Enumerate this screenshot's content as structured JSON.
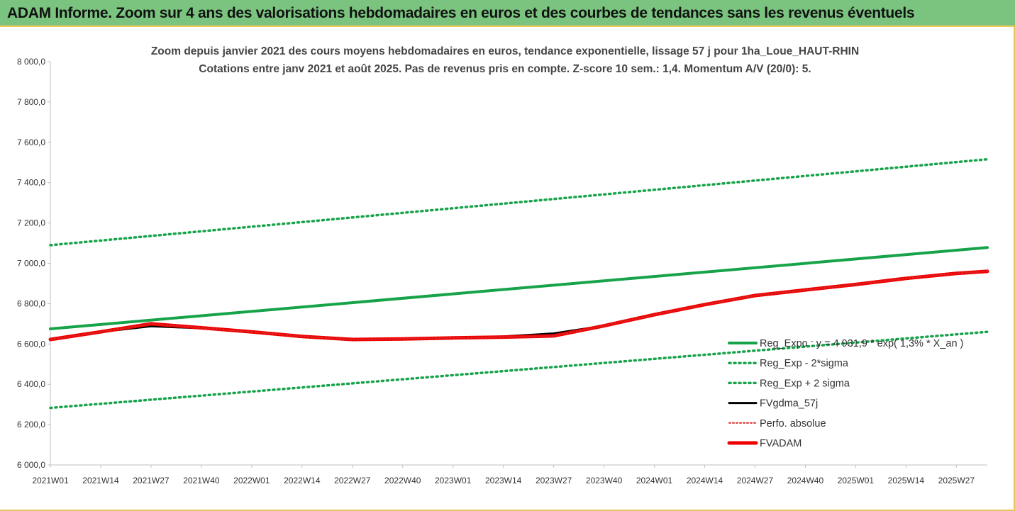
{
  "header": {
    "title": "ADAM Informe. Zoom sur 4 ans des valorisations hebdomadaires en euros et des courbes de tendances sans les revenus éventuels"
  },
  "chart_data": {
    "type": "line",
    "title_lines": [
      "Zoom depuis janvier 2021 des cours moyens hebdomadaires en euros, tendance exponentielle, lissage 57 j pour 1ha_Loue_HAUT-RHIN",
      "Cotations entre janv 2021 et août 2025.  Pas de revenus pris en compte. Z-score 10 sem.: 1,4. Momentum A/V (20/0): 5."
    ],
    "x_tick_labels": [
      "2021W01",
      "2021W14",
      "2021W27",
      "2021W40",
      "2022W01",
      "2022W14",
      "2022W27",
      "2022W40",
      "2023W01",
      "2023W14",
      "2023W27",
      "2023W40",
      "2024W01",
      "2024W14",
      "2024W27",
      "2024W40",
      "2025W01",
      "2025W14",
      "2025W27"
    ],
    "y_tick_labels": [
      "8 000,0",
      "7 800,0",
      "7 600,0",
      "7 400,0",
      "7 200,0",
      "7 000,0",
      "6 800,0",
      "6 600,0",
      "6 400,0",
      "6 200,0",
      "6 000,0"
    ],
    "ylim": [
      6000,
      8000
    ],
    "x_range_weeks": [
      0,
      242
    ],
    "grid": false,
    "legend_position": "right",
    "series": [
      {
        "name": "Reg_Expo : y = 4 931,9 * exp( 1,3% *  X_an )",
        "style": "solid",
        "color": "#16a34a",
        "x": [
          0,
          242
        ],
        "y": [
          6675,
          7078
        ]
      },
      {
        "name": "Reg_Exp - 2*sigma",
        "style": "dotted",
        "color": "#16a34a",
        "x": [
          0,
          242
        ],
        "y": [
          6283,
          6660
        ]
      },
      {
        "name": "Reg_Exp + 2 sigma",
        "style": "dotted",
        "color": "#16a34a",
        "x": [
          0,
          242
        ],
        "y": [
          7090,
          7516
        ]
      },
      {
        "name": "FVgdma_57j",
        "style": "solid",
        "color": "#000000",
        "x": [
          0,
          13,
          26,
          39,
          52,
          65,
          78,
          91,
          104,
          117,
          130,
          143,
          156,
          169,
          182,
          195,
          208,
          221,
          234,
          242
        ],
        "y": [
          6622,
          6660,
          6688,
          6678,
          6658,
          6637,
          6623,
          6623,
          6630,
          6637,
          6652,
          6690,
          6745,
          6795,
          6840,
          6868,
          6895,
          6925,
          6950,
          6960
        ]
      },
      {
        "name": "Perfo. absolue",
        "style": "dotted",
        "color": "#dc2626",
        "x": [
          0,
          13,
          26,
          39,
          52,
          65,
          78,
          91,
          104,
          117,
          130,
          143,
          156,
          169,
          182,
          195,
          208,
          221,
          234,
          242
        ],
        "y": [
          6622,
          6660,
          6700,
          6680,
          6660,
          6637,
          6622,
          6625,
          6630,
          6634,
          6640,
          6690,
          6745,
          6795,
          6840,
          6868,
          6895,
          6925,
          6950,
          6960
        ]
      },
      {
        "name": "FVADAM",
        "style": "solid-thick",
        "color": "#ef0000",
        "x": [
          0,
          13,
          26,
          39,
          52,
          65,
          78,
          91,
          104,
          117,
          130,
          143,
          156,
          169,
          182,
          195,
          208,
          221,
          234,
          242
        ],
        "y": [
          6622,
          6660,
          6700,
          6680,
          6660,
          6637,
          6622,
          6625,
          6630,
          6634,
          6640,
          6690,
          6745,
          6795,
          6840,
          6868,
          6895,
          6925,
          6950,
          6960
        ]
      }
    ]
  }
}
